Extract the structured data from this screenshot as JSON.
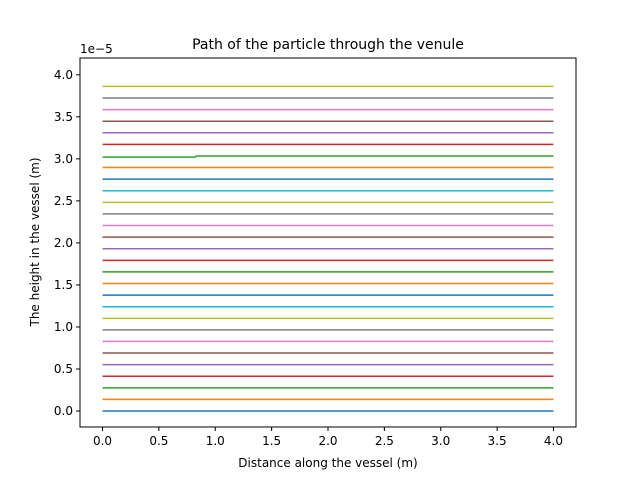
{
  "chart_data": {
    "type": "line",
    "title": "Path of the particle through the venule",
    "xlabel": "Distance along the vessel (m)",
    "ylabel": "The height in the vessel (m)",
    "y_offset_label": "1e−5",
    "y_scale_factor": 1e-05,
    "xlim": [
      -0.2,
      4.2
    ],
    "ylim": [
      -0.19,
      4.2
    ],
    "x_ticks": [
      0.0,
      0.5,
      1.0,
      1.5,
      2.0,
      2.5,
      3.0,
      3.5,
      4.0
    ],
    "x_tick_labels": [
      "0.0",
      "0.5",
      "1.0",
      "1.5",
      "2.0",
      "2.5",
      "3.0",
      "3.5",
      "4.0"
    ],
    "y_ticks": [
      0.0,
      0.5,
      1.0,
      1.5,
      2.0,
      2.5,
      3.0,
      3.5,
      4.0
    ],
    "y_tick_labels": [
      "0.0",
      "0.5",
      "1.0",
      "1.5",
      "2.0",
      "2.5",
      "3.0",
      "3.5",
      "4.0"
    ],
    "grid": false,
    "legend": "none",
    "series": [
      {
        "color": "#1f77b4",
        "x": [
          0.0,
          4.0
        ],
        "y": [
          0.0,
          0.0
        ]
      },
      {
        "color": "#ff7f0e",
        "x": [
          0.0,
          4.0
        ],
        "y": [
          0.138,
          0.138
        ]
      },
      {
        "color": "#2ca02c",
        "x": [
          0.0,
          4.0
        ],
        "y": [
          0.276,
          0.276
        ]
      },
      {
        "color": "#d62728",
        "x": [
          0.0,
          4.0
        ],
        "y": [
          0.414,
          0.414
        ]
      },
      {
        "color": "#9467bd",
        "x": [
          0.0,
          4.0
        ],
        "y": [
          0.552,
          0.552
        ]
      },
      {
        "color": "#8c564b",
        "x": [
          0.0,
          4.0
        ],
        "y": [
          0.69,
          0.69
        ]
      },
      {
        "color": "#e377c2",
        "x": [
          0.0,
          4.0
        ],
        "y": [
          0.828,
          0.828
        ]
      },
      {
        "color": "#7f7f7f",
        "x": [
          0.0,
          4.0
        ],
        "y": [
          0.966,
          0.966
        ]
      },
      {
        "color": "#bcbd22",
        "x": [
          0.0,
          4.0
        ],
        "y": [
          1.103,
          1.103
        ]
      },
      {
        "color": "#17becf",
        "x": [
          0.0,
          4.0
        ],
        "y": [
          1.241,
          1.241
        ]
      },
      {
        "color": "#1f77b4",
        "x": [
          0.0,
          4.0
        ],
        "y": [
          1.379,
          1.379
        ]
      },
      {
        "color": "#ff7f0e",
        "x": [
          0.0,
          4.0
        ],
        "y": [
          1.517,
          1.517
        ]
      },
      {
        "color": "#2ca02c",
        "x": [
          0.0,
          4.0
        ],
        "y": [
          1.655,
          1.655
        ]
      },
      {
        "color": "#d62728",
        "x": [
          0.0,
          4.0
        ],
        "y": [
          1.793,
          1.793
        ]
      },
      {
        "color": "#9467bd",
        "x": [
          0.0,
          4.0
        ],
        "y": [
          1.931,
          1.931
        ]
      },
      {
        "color": "#8c564b",
        "x": [
          0.0,
          4.0
        ],
        "y": [
          2.069,
          2.069
        ]
      },
      {
        "color": "#e377c2",
        "x": [
          0.0,
          4.0
        ],
        "y": [
          2.207,
          2.207
        ]
      },
      {
        "color": "#7f7f7f",
        "x": [
          0.0,
          4.0
        ],
        "y": [
          2.345,
          2.345
        ]
      },
      {
        "color": "#bcbd22",
        "x": [
          0.0,
          4.0
        ],
        "y": [
          2.483,
          2.483
        ]
      },
      {
        "color": "#17becf",
        "x": [
          0.0,
          4.0
        ],
        "y": [
          2.621,
          2.621
        ]
      },
      {
        "color": "#1f77b4",
        "x": [
          0.0,
          4.0
        ],
        "y": [
          2.759,
          2.759
        ]
      },
      {
        "color": "#ff7f0e",
        "x": [
          0.0,
          4.0
        ],
        "y": [
          2.897,
          2.897
        ]
      },
      {
        "color": "#2ca02c",
        "x": [
          0.0,
          0.82,
          0.83,
          4.0
        ],
        "y": [
          3.02,
          3.02,
          3.034,
          3.034
        ]
      },
      {
        "color": "#d62728",
        "x": [
          0.0,
          4.0
        ],
        "y": [
          3.172,
          3.172
        ]
      },
      {
        "color": "#9467bd",
        "x": [
          0.0,
          4.0
        ],
        "y": [
          3.31,
          3.31
        ]
      },
      {
        "color": "#8c564b",
        "x": [
          0.0,
          4.0
        ],
        "y": [
          3.448,
          3.448
        ]
      },
      {
        "color": "#e377c2",
        "x": [
          0.0,
          4.0
        ],
        "y": [
          3.586,
          3.586
        ]
      },
      {
        "color": "#7f7f7f",
        "x": [
          0.0,
          4.0
        ],
        "y": [
          3.724,
          3.724
        ]
      },
      {
        "color": "#bcbd22",
        "x": [
          0.0,
          4.0
        ],
        "y": [
          3.862,
          3.862
        ]
      }
    ]
  }
}
